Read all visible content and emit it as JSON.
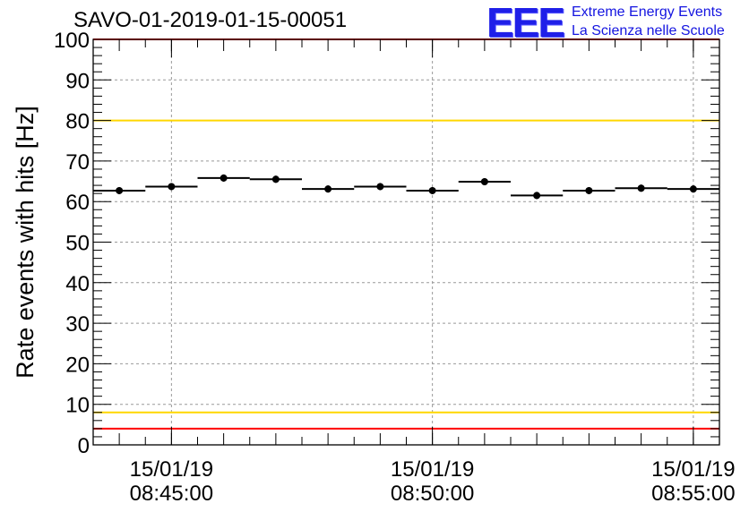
{
  "title": "SAVO-01-2019-01-15-00051",
  "logo": {
    "mark": "EEE",
    "line1": "Extreme Energy Events",
    "line2": "La Scienza nelle Scuole",
    "color": "#1414e0"
  },
  "colors": {
    "red_line": "#ff0000",
    "yellow_line": "#ffd700",
    "points": "#000000",
    "grid": "#999999"
  },
  "chart_data": {
    "type": "scatter",
    "title": "SAVO-01-2019-01-15-00051",
    "xlabel": "",
    "ylabel": "Rate events with hits [Hz]",
    "ylim": [
      0,
      100
    ],
    "xlim": [
      "2019-01-15 08:43:30",
      "2019-01-15 08:55:30"
    ],
    "yticks": [
      0,
      10,
      20,
      30,
      40,
      50,
      60,
      70,
      80,
      90,
      100
    ],
    "xticks": [
      {
        "x": "2019-01-15 08:45:00",
        "date": "15/01/19",
        "time": "08:45:00"
      },
      {
        "x": "2019-01-15 08:50:00",
        "date": "15/01/19",
        "time": "08:50:00"
      },
      {
        "x": "2019-01-15 08:55:00",
        "date": "15/01/19",
        "time": "08:55:00"
      }
    ],
    "grid": true,
    "reference_lines": [
      {
        "y": 100,
        "color": "red"
      },
      {
        "y": 80,
        "color": "yellow"
      },
      {
        "y": 8,
        "color": "yellow"
      },
      {
        "y": 4,
        "color": "red"
      }
    ],
    "points": [
      {
        "x": "2019-01-15 08:44:00",
        "y": 62.7,
        "x_from": "2019-01-15 08:43:30",
        "x_to": "2019-01-15 08:44:30"
      },
      {
        "x": "2019-01-15 08:45:00",
        "y": 63.7,
        "x_from": "2019-01-15 08:44:30",
        "x_to": "2019-01-15 08:45:30"
      },
      {
        "x": "2019-01-15 08:46:00",
        "y": 65.8,
        "x_from": "2019-01-15 08:45:30",
        "x_to": "2019-01-15 08:46:30"
      },
      {
        "x": "2019-01-15 08:47:00",
        "y": 65.5,
        "x_from": "2019-01-15 08:46:30",
        "x_to": "2019-01-15 08:47:30"
      },
      {
        "x": "2019-01-15 08:48:00",
        "y": 63.1,
        "x_from": "2019-01-15 08:47:30",
        "x_to": "2019-01-15 08:48:30"
      },
      {
        "x": "2019-01-15 08:49:00",
        "y": 63.7,
        "x_from": "2019-01-15 08:48:30",
        "x_to": "2019-01-15 08:49:30"
      },
      {
        "x": "2019-01-15 08:50:00",
        "y": 62.7,
        "x_from": "2019-01-15 08:49:30",
        "x_to": "2019-01-15 08:50:30"
      },
      {
        "x": "2019-01-15 08:51:00",
        "y": 64.9,
        "x_from": "2019-01-15 08:50:30",
        "x_to": "2019-01-15 08:51:30"
      },
      {
        "x": "2019-01-15 08:52:00",
        "y": 61.5,
        "x_from": "2019-01-15 08:51:30",
        "x_to": "2019-01-15 08:52:30"
      },
      {
        "x": "2019-01-15 08:53:00",
        "y": 62.7,
        "x_from": "2019-01-15 08:52:30",
        "x_to": "2019-01-15 08:53:30"
      },
      {
        "x": "2019-01-15 08:54:00",
        "y": 63.3,
        "x_from": "2019-01-15 08:53:30",
        "x_to": "2019-01-15 08:54:30"
      },
      {
        "x": "2019-01-15 08:55:00",
        "y": 63.1,
        "x_from": "2019-01-15 08:54:30",
        "x_to": "2019-01-15 08:55:30"
      }
    ]
  }
}
